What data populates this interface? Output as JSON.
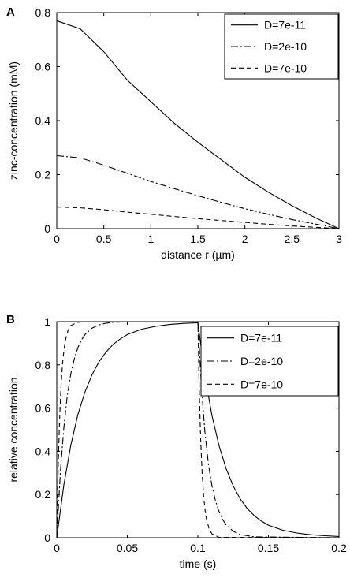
{
  "chart_data": [
    {
      "panel_label": "A",
      "type": "line",
      "xlabel": "distance r (µm)",
      "ylabel": "zinc-concentration (mM)",
      "xlim": [
        0,
        3
      ],
      "ylim": [
        0,
        0.8
      ],
      "xticks": [
        0,
        0.5,
        1,
        1.5,
        2,
        2.5,
        3
      ],
      "xtick_labels": [
        "0",
        "0.5",
        "1",
        "1.5",
        "2",
        "2.5",
        "3"
      ],
      "yticks": [
        0,
        0.2,
        0.4,
        0.6,
        0.8
      ],
      "ytick_labels": [
        "0",
        "0.2",
        "0.4",
        "0.6",
        "0.8"
      ],
      "grid": false,
      "legend_position": "top-right",
      "series": [
        {
          "name": "D=7e-11",
          "style": "solid",
          "x": [
            0,
            0.25,
            0.5,
            0.75,
            1.0,
            1.25,
            1.5,
            1.75,
            2.0,
            2.25,
            2.5,
            2.75,
            3.0
          ],
          "y": [
            0.77,
            0.74,
            0.655,
            0.55,
            0.47,
            0.39,
            0.32,
            0.255,
            0.19,
            0.135,
            0.085,
            0.04,
            0.0
          ]
        },
        {
          "name": "D=2e-10",
          "style": "dashdot",
          "x": [
            0,
            0.25,
            0.5,
            0.75,
            1.0,
            1.25,
            1.5,
            1.75,
            2.0,
            2.25,
            2.5,
            2.75,
            3.0
          ],
          "y": [
            0.27,
            0.262,
            0.235,
            0.205,
            0.175,
            0.148,
            0.122,
            0.097,
            0.074,
            0.053,
            0.034,
            0.017,
            0.0
          ]
        },
        {
          "name": "D=7e-10",
          "style": "dashed",
          "x": [
            0,
            0.25,
            0.5,
            0.75,
            1.0,
            1.25,
            1.5,
            1.75,
            2.0,
            2.25,
            2.5,
            2.75,
            3.0
          ],
          "y": [
            0.08,
            0.077,
            0.07,
            0.061,
            0.053,
            0.045,
            0.037,
            0.03,
            0.023,
            0.016,
            0.01,
            0.005,
            0.0
          ]
        }
      ]
    },
    {
      "panel_label": "B",
      "type": "line",
      "xlabel": "time (s)",
      "ylabel": "relative concentration",
      "xlim": [
        0,
        0.2
      ],
      "ylim": [
        0,
        1
      ],
      "xticks": [
        0,
        0.05,
        0.1,
        0.15,
        0.2
      ],
      "xtick_labels": [
        "0",
        "0.05",
        "0.1",
        "0.15",
        "0.2"
      ],
      "yticks": [
        0,
        0.2,
        0.4,
        0.6,
        0.8,
        1
      ],
      "ytick_labels": [
        "0",
        "0.2",
        "0.4",
        "0.6",
        "0.8",
        "1"
      ],
      "grid": false,
      "legend_position": "top-right",
      "series": [
        {
          "name": "D=7e-11",
          "style": "solid",
          "x": [
            0,
            0.005,
            0.01,
            0.015,
            0.02,
            0.025,
            0.03,
            0.035,
            0.04,
            0.045,
            0.05,
            0.06,
            0.07,
            0.08,
            0.09,
            0.1,
            0.105,
            0.11,
            0.115,
            0.12,
            0.125,
            0.13,
            0.135,
            0.14,
            0.145,
            0.15,
            0.16,
            0.17,
            0.18,
            0.19,
            0.2
          ],
          "y": [
            0,
            0.245,
            0.43,
            0.57,
            0.675,
            0.755,
            0.815,
            0.86,
            0.895,
            0.92,
            0.94,
            0.965,
            0.978,
            0.987,
            0.992,
            0.995,
            0.75,
            0.565,
            0.425,
            0.32,
            0.24,
            0.18,
            0.135,
            0.102,
            0.077,
            0.058,
            0.035,
            0.022,
            0.014,
            0.009,
            0.006
          ]
        },
        {
          "name": "D=2e-10",
          "style": "dashdot",
          "x": [
            0,
            0.0025,
            0.005,
            0.0075,
            0.01,
            0.0125,
            0.015,
            0.0175,
            0.02,
            0.025,
            0.03,
            0.035,
            0.04,
            0.05,
            0.06,
            0.08,
            0.1,
            0.1025,
            0.105,
            0.1075,
            0.11,
            0.1125,
            0.115,
            0.1175,
            0.12,
            0.125,
            0.13,
            0.14,
            0.2
          ],
          "y": [
            0,
            0.3,
            0.51,
            0.66,
            0.76,
            0.83,
            0.88,
            0.915,
            0.94,
            0.97,
            0.985,
            0.993,
            0.997,
            0.999,
            1.0,
            1.0,
            1.0,
            0.7,
            0.49,
            0.34,
            0.24,
            0.17,
            0.12,
            0.085,
            0.06,
            0.03,
            0.015,
            0.004,
            0.0
          ]
        },
        {
          "name": "D=7e-10",
          "style": "dashed",
          "x": [
            0,
            0.001,
            0.002,
            0.003,
            0.004,
            0.005,
            0.006,
            0.008,
            0.01,
            0.015,
            0.02,
            0.05,
            0.1,
            0.101,
            0.102,
            0.103,
            0.104,
            0.105,
            0.106,
            0.108,
            0.11,
            0.115,
            0.2
          ],
          "y": [
            0,
            0.33,
            0.55,
            0.7,
            0.8,
            0.865,
            0.91,
            0.96,
            0.982,
            0.997,
            1.0,
            1.0,
            1.0,
            0.67,
            0.45,
            0.3,
            0.2,
            0.135,
            0.09,
            0.04,
            0.018,
            0.002,
            0.0
          ]
        }
      ]
    }
  ]
}
